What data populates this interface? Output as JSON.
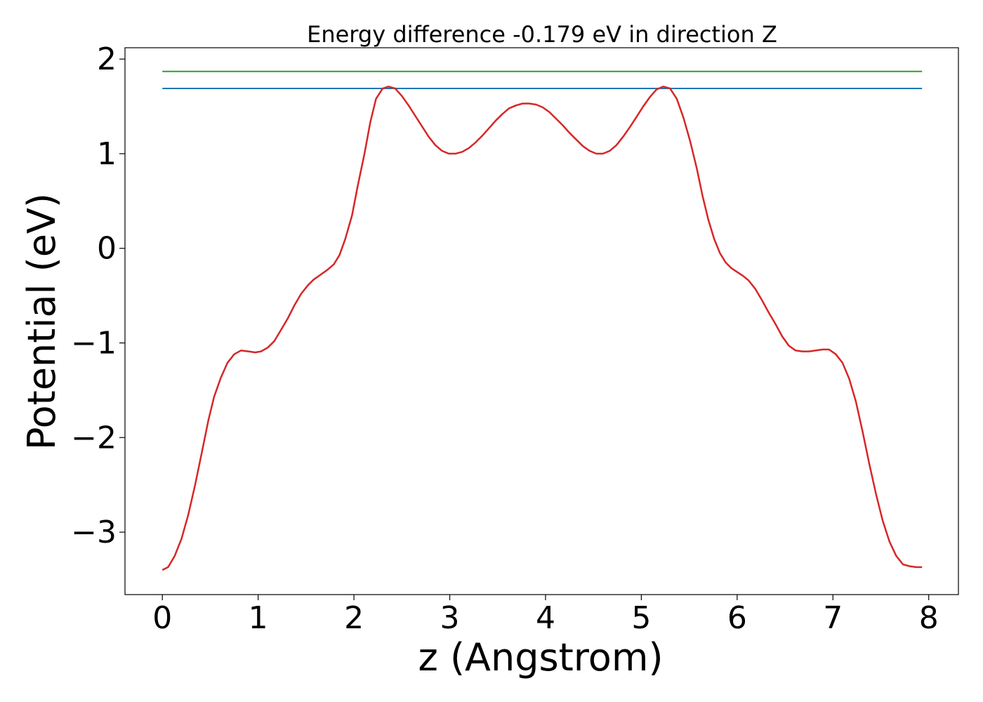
{
  "chart_data": {
    "type": "line",
    "title": "Energy difference -0.179 eV in direction Z",
    "xlabel": "z (Angstrom)",
    "ylabel": "Potential (eV)",
    "xlim": [
      -0.39,
      8.31
    ],
    "ylim": [
      -3.66,
      2.12
    ],
    "xticks": [
      0,
      1,
      2,
      3,
      4,
      5,
      6,
      7,
      8
    ],
    "xtick_labels": [
      "0",
      "1",
      "2",
      "3",
      "4",
      "5",
      "6",
      "7",
      "8"
    ],
    "yticks": [
      -3,
      -2,
      -1,
      0,
      1,
      2
    ],
    "ytick_labels": [
      "−3",
      "−2",
      "−1",
      "0",
      "1",
      "2"
    ],
    "grid": false,
    "colors": {
      "potential": "#d62728",
      "lower_level": "#1f77b4",
      "upper_level": "#2ca02c"
    },
    "hlines": [
      {
        "id": "upper_level",
        "y": 1.87,
        "xmin": 0.0,
        "xmax": 7.93
      },
      {
        "id": "lower_level",
        "y": 1.69,
        "xmin": 0.0,
        "xmax": 7.93
      }
    ],
    "series": [
      {
        "id": "potential",
        "x": [
          0.0,
          0.06,
          0.13,
          0.2,
          0.27,
          0.34,
          0.41,
          0.48,
          0.54,
          0.61,
          0.68,
          0.75,
          0.82,
          0.9,
          0.97,
          1.03,
          1.1,
          1.17,
          1.24,
          1.31,
          1.38,
          1.45,
          1.52,
          1.58,
          1.65,
          1.72,
          1.79,
          1.85,
          1.91,
          1.98,
          2.04,
          2.11,
          2.17,
          2.23,
          2.3,
          2.36,
          2.43,
          2.5,
          2.57,
          2.64,
          2.71,
          2.78,
          2.85,
          2.92,
          2.99,
          3.06,
          3.13,
          3.2,
          3.27,
          3.34,
          3.41,
          3.48,
          3.55,
          3.62,
          3.69,
          3.76,
          3.83,
          3.9,
          3.97,
          4.04,
          4.11,
          4.18,
          4.25,
          4.32,
          4.39,
          4.46,
          4.53,
          4.6,
          4.67,
          4.74,
          4.81,
          4.88,
          4.95,
          5.02,
          5.09,
          5.16,
          5.23,
          5.3,
          5.37,
          5.44,
          5.51,
          5.58,
          5.64,
          5.7,
          5.76,
          5.82,
          5.88,
          5.94,
          6.0,
          6.06,
          6.12,
          6.19,
          6.26,
          6.33,
          6.4,
          6.47,
          6.54,
          6.61,
          6.68,
          6.75,
          6.82,
          6.89,
          6.96,
          7.03,
          7.1,
          7.17,
          7.24,
          7.31,
          7.38,
          7.45,
          7.52,
          7.59,
          7.66,
          7.73,
          7.8,
          7.87,
          7.93
        ],
        "y": [
          -3.4,
          -3.37,
          -3.25,
          -3.07,
          -2.82,
          -2.51,
          -2.17,
          -1.82,
          -1.57,
          -1.37,
          -1.21,
          -1.12,
          -1.08,
          -1.09,
          -1.1,
          -1.09,
          -1.05,
          -0.98,
          -0.86,
          -0.74,
          -0.6,
          -0.48,
          -0.39,
          -0.33,
          -0.28,
          -0.23,
          -0.17,
          -0.07,
          0.1,
          0.35,
          0.66,
          1.0,
          1.33,
          1.58,
          1.69,
          1.71,
          1.69,
          1.61,
          1.51,
          1.4,
          1.29,
          1.18,
          1.09,
          1.03,
          1.0,
          1.0,
          1.02,
          1.06,
          1.12,
          1.19,
          1.27,
          1.35,
          1.42,
          1.48,
          1.51,
          1.53,
          1.53,
          1.52,
          1.49,
          1.44,
          1.37,
          1.3,
          1.22,
          1.15,
          1.08,
          1.03,
          1.0,
          1.0,
          1.03,
          1.09,
          1.18,
          1.28,
          1.39,
          1.5,
          1.6,
          1.68,
          1.71,
          1.69,
          1.58,
          1.38,
          1.13,
          0.84,
          0.55,
          0.3,
          0.1,
          -0.05,
          -0.15,
          -0.21,
          -0.25,
          -0.29,
          -0.34,
          -0.43,
          -0.55,
          -0.68,
          -0.8,
          -0.93,
          -1.03,
          -1.08,
          -1.09,
          -1.09,
          -1.08,
          -1.07,
          -1.07,
          -1.12,
          -1.21,
          -1.38,
          -1.62,
          -1.94,
          -2.28,
          -2.6,
          -2.88,
          -3.1,
          -3.25,
          -3.34,
          -3.36,
          -3.37,
          -3.37
        ]
      }
    ]
  }
}
